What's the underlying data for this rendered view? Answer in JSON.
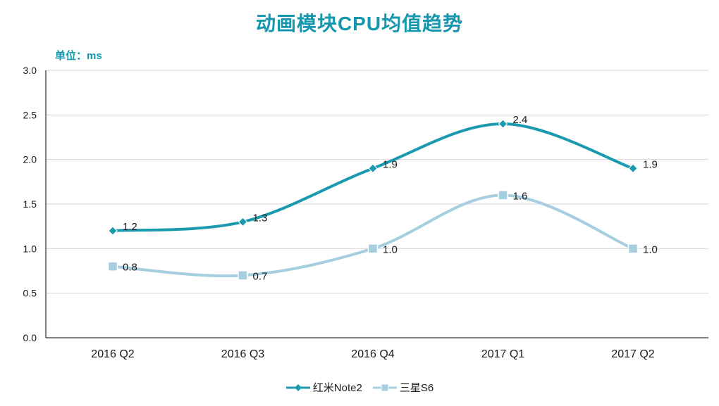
{
  "header": {
    "title": "动画模块CPU均值趋势",
    "unit_label": "单位：ms"
  },
  "chart_data": {
    "type": "line",
    "smooth": true,
    "grid": true,
    "legend_position": "bottom",
    "title": "动画模块CPU均值趋势",
    "xlabel": "",
    "ylabel": "单位：ms",
    "ylim": [
      0.0,
      3.0
    ],
    "ytick_step": 0.5,
    "ytick_labels": [
      "0.0",
      "0.5",
      "1.0",
      "1.5",
      "2.0",
      "2.5",
      "3.0"
    ],
    "categories": [
      "2016 Q2",
      "2016 Q3",
      "2016 Q4",
      "2017 Q1",
      "2017 Q2"
    ],
    "series": [
      {
        "name": "红米Note2",
        "marker": "diamond",
        "color": "#1B9AAF",
        "values": [
          1.2,
          1.3,
          1.9,
          2.4,
          1.9
        ],
        "labels": [
          "1.2",
          "1.3",
          "1.9",
          "2.4",
          "1.9"
        ]
      },
      {
        "name": "三星S6",
        "marker": "square",
        "color": "#A5CEDF",
        "values": [
          0.8,
          0.7,
          1.0,
          1.6,
          1.0
        ],
        "labels": [
          "0.8",
          "0.7",
          "1.0",
          "1.6",
          "1.0"
        ]
      }
    ]
  },
  "colors": {
    "title": "#1797AE",
    "axis": "#000000",
    "grid": "#D6D6D6",
    "tick_text": "#1a1a1a",
    "data_label": "#1a1a1a"
  }
}
